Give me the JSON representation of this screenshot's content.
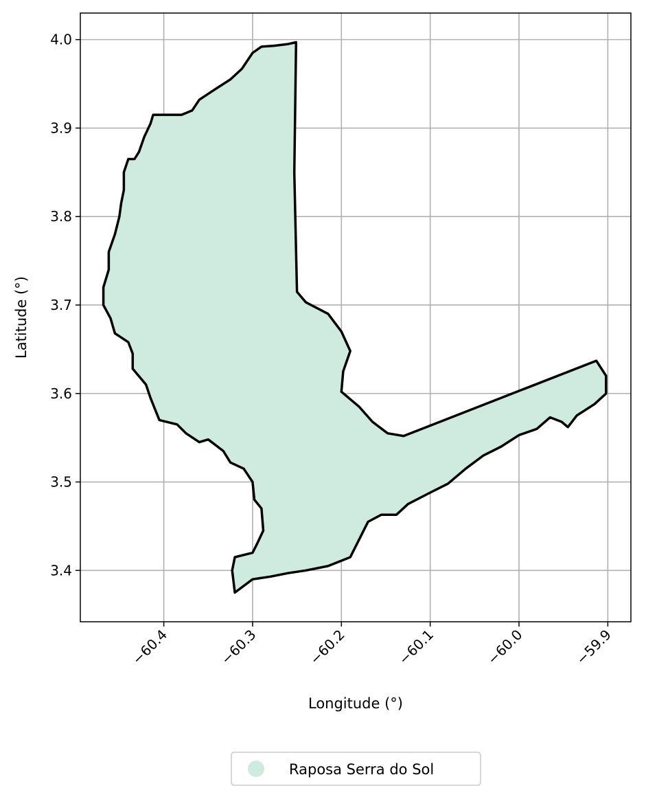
{
  "chart_data": {
    "type": "map",
    "xlabel": "Longitude (°)",
    "ylabel": "Latitude (°)",
    "xlim": [
      -60.494,
      -59.874
    ],
    "ylim": [
      3.342,
      4.03
    ],
    "xticks": [
      -60.4,
      -60.3,
      -60.2,
      -60.1,
      -60.0,
      -59.9
    ],
    "xtick_labels": [
      "−60.4",
      "−60.3",
      "−60.2",
      "−60.1",
      "−60.0",
      "−59.9"
    ],
    "yticks": [
      3.4,
      3.5,
      3.6,
      3.7,
      3.8,
      3.9,
      4.0
    ],
    "ytick_labels": [
      "3.4",
      "3.5",
      "3.6",
      "3.7",
      "3.8",
      "3.9",
      "4.0"
    ],
    "grid": true,
    "legend_position": "bottom-center",
    "legend": [
      {
        "label": "Raposa Serra do Sol",
        "color": "#cfebdf"
      }
    ],
    "region": {
      "name": "Raposa Serra do Sol",
      "fill": "#cfebdf",
      "edge": "#000000",
      "boundary": [
        [
          -60.251,
          3.997
        ],
        [
          -60.26,
          3.995
        ],
        [
          -60.276,
          3.993
        ],
        [
          -60.29,
          3.992
        ],
        [
          -60.3,
          3.985
        ],
        [
          -60.312,
          3.967
        ],
        [
          -60.325,
          3.955
        ],
        [
          -60.345,
          3.942
        ],
        [
          -60.36,
          3.932
        ],
        [
          -60.368,
          3.92
        ],
        [
          -60.38,
          3.915
        ],
        [
          -60.4,
          3.915
        ],
        [
          -60.412,
          3.915
        ],
        [
          -60.415,
          3.905
        ],
        [
          -60.422,
          3.89
        ],
        [
          -60.428,
          3.873
        ],
        [
          -60.433,
          3.865
        ],
        [
          -60.44,
          3.865
        ],
        [
          -60.445,
          3.85
        ],
        [
          -60.445,
          3.83
        ],
        [
          -60.448,
          3.815
        ],
        [
          -60.45,
          3.8
        ],
        [
          -60.455,
          3.78
        ],
        [
          -60.462,
          3.76
        ],
        [
          -60.462,
          3.74
        ],
        [
          -60.468,
          3.72
        ],
        [
          -60.468,
          3.7
        ],
        [
          -60.46,
          3.685
        ],
        [
          -60.455,
          3.668
        ],
        [
          -60.44,
          3.658
        ],
        [
          -60.435,
          3.645
        ],
        [
          -60.435,
          3.628
        ],
        [
          -60.42,
          3.61
        ],
        [
          -60.415,
          3.595
        ],
        [
          -60.405,
          3.57
        ],
        [
          -60.385,
          3.565
        ],
        [
          -60.375,
          3.555
        ],
        [
          -60.36,
          3.545
        ],
        [
          -60.35,
          3.548
        ],
        [
          -60.333,
          3.535
        ],
        [
          -60.325,
          3.522
        ],
        [
          -60.31,
          3.515
        ],
        [
          -60.3,
          3.5
        ],
        [
          -60.298,
          3.48
        ],
        [
          -60.29,
          3.47
        ],
        [
          -60.288,
          3.445
        ],
        [
          -60.295,
          3.43
        ],
        [
          -60.3,
          3.42
        ],
        [
          -60.32,
          3.415
        ],
        [
          -60.323,
          3.4
        ],
        [
          -60.32,
          3.375
        ],
        [
          -60.3,
          3.39
        ],
        [
          -60.28,
          3.393
        ],
        [
          -60.26,
          3.397
        ],
        [
          -60.24,
          3.4
        ],
        [
          -60.215,
          3.405
        ],
        [
          -60.19,
          3.415
        ],
        [
          -60.18,
          3.435
        ],
        [
          -60.17,
          3.455
        ],
        [
          -60.155,
          3.463
        ],
        [
          -60.138,
          3.463
        ],
        [
          -60.125,
          3.475
        ],
        [
          -60.1,
          3.488
        ],
        [
          -60.08,
          3.498
        ],
        [
          -60.06,
          3.515
        ],
        [
          -60.04,
          3.53
        ],
        [
          -60.02,
          3.54
        ],
        [
          -60.0,
          3.553
        ],
        [
          -59.98,
          3.56
        ],
        [
          -59.965,
          3.573
        ],
        [
          -59.952,
          3.568
        ],
        [
          -59.945,
          3.562
        ],
        [
          -59.935,
          3.575
        ],
        [
          -59.915,
          3.588
        ],
        [
          -59.902,
          3.6
        ],
        [
          -59.902,
          3.62
        ],
        [
          -59.913,
          3.637
        ],
        [
          -60.13,
          3.552
        ],
        [
          -60.148,
          3.555
        ],
        [
          -60.165,
          3.568
        ],
        [
          -60.18,
          3.585
        ],
        [
          -60.2,
          3.602
        ],
        [
          -60.198,
          3.625
        ],
        [
          -60.19,
          3.648
        ],
        [
          -60.2,
          3.67
        ],
        [
          -60.215,
          3.69
        ],
        [
          -60.24,
          3.703
        ],
        [
          -60.25,
          3.715
        ],
        [
          -60.253,
          3.85
        ],
        [
          -60.251,
          3.997
        ]
      ]
    }
  }
}
